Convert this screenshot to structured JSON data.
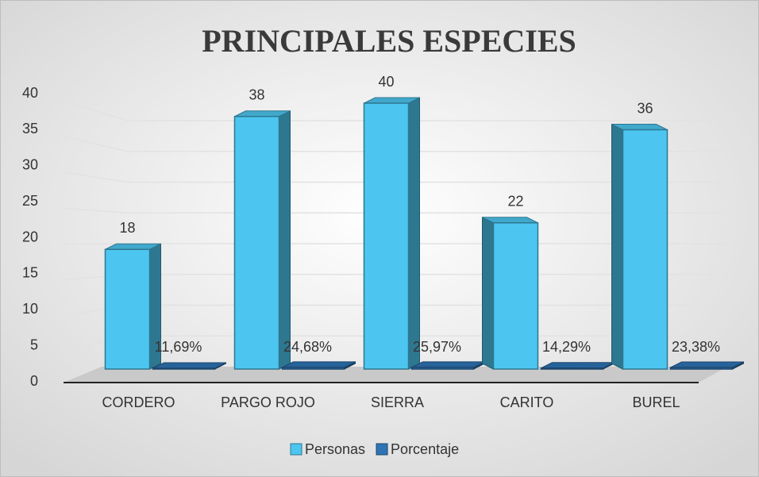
{
  "chart_data": {
    "type": "bar3d",
    "title": "PRINCIPALES ESPECIES",
    "categories": [
      "CORDERO",
      "PARGO ROJO",
      "SIERRA",
      "CARITO",
      "BUREL"
    ],
    "series": [
      {
        "name": "Personas",
        "color": "#4cc6f0",
        "values": [
          18,
          38,
          40,
          22,
          36
        ]
      },
      {
        "name": "Porcentaje",
        "color": "#2e74b5",
        "values": [
          0.1169,
          0.2468,
          0.2597,
          0.1429,
          0.2338
        ],
        "value_labels": [
          "11,69%",
          "24,68%",
          "25,97%",
          "14,29%",
          "23,38%"
        ]
      }
    ],
    "ylim": [
      0,
      40
    ],
    "yticks": [
      0,
      5,
      10,
      15,
      20,
      25,
      30,
      35,
      40
    ],
    "grid": true,
    "legend": "bottom"
  }
}
